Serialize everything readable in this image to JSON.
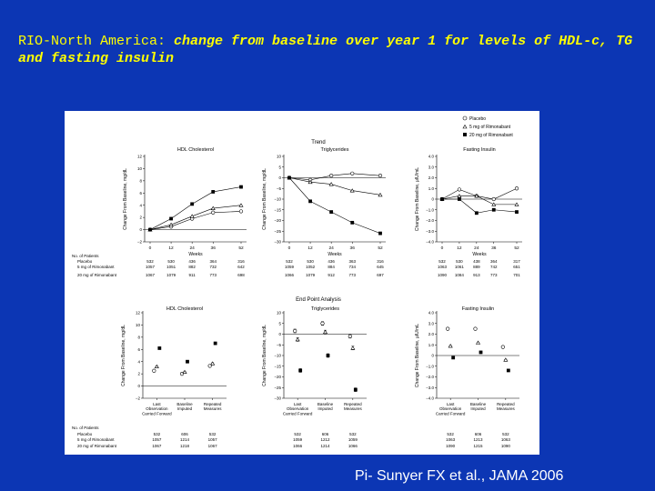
{
  "slide": {
    "title_part1": "RIO-North America:",
    "title_part2": " change from baseline over year 1 for levels of HDL-c, TG and fasting insulin",
    "citation": "Pi- Sunyer FX et al., JAMA 2006"
  },
  "colors": {
    "background": "#0c36b4",
    "title": "#ffff00",
    "footer": "#ffffff"
  },
  "legend": {
    "items": [
      {
        "label": "Placebo",
        "marker": "open-circle"
      },
      {
        "label": "5 mg of Rimonabant",
        "marker": "triangle"
      },
      {
        "label": "20 mg of Rimonabant",
        "marker": "filled-square"
      }
    ]
  },
  "sections": {
    "trend": "Trend",
    "endpoint": "End Point Analysis"
  },
  "patients": {
    "header": "No. of Patients",
    "rows": [
      "Placebo",
      "5 mg of Rimonabant",
      "20 mg of Rimonabant"
    ]
  },
  "chart_data": [
    {
      "type": "line",
      "title": "HDL Cholesterol",
      "xlabel": "Weeks",
      "ylabel": "Change From Baseline, mg/dL",
      "x": [
        0,
        12,
        24,
        36,
        52
      ],
      "ylim": [
        -2,
        12
      ],
      "yticks": [
        "−2",
        "0",
        "2",
        "4",
        "6",
        "8",
        "10",
        "12"
      ],
      "series": [
        {
          "name": "Placebo",
          "values": [
            0,
            0.5,
            1.8,
            2.8,
            3.0
          ]
        },
        {
          "name": "5 mg of Rimonabant",
          "values": [
            0,
            0.8,
            2.2,
            3.5,
            4.0
          ]
        },
        {
          "name": "20 mg of Rimonabant",
          "values": [
            0,
            1.8,
            4.2,
            6.2,
            7.0
          ]
        }
      ],
      "patients": [
        [
          "532",
          "530",
          "436",
          "364",
          "316"
        ],
        [
          "1057",
          "1051",
          "882",
          "732",
          "642"
        ],
        [
          "1067",
          "1079",
          "911",
          "773",
          "698"
        ]
      ]
    },
    {
      "type": "line",
      "title": "Triglycerides",
      "xlabel": "Weeks",
      "ylabel": "Change From Baseline, mg/dL",
      "x": [
        0,
        12,
        24,
        36,
        52
      ],
      "ylim": [
        -30,
        10
      ],
      "yticks": [
        "−30",
        "−25",
        "−20",
        "−15",
        "−10",
        "−5",
        "0",
        "5",
        "10"
      ],
      "series": [
        {
          "name": "Placebo",
          "values": [
            0,
            -1,
            1,
            2,
            1
          ]
        },
        {
          "name": "5 mg of Rimonabant",
          "values": [
            0,
            -2,
            -3,
            -6,
            -8
          ]
        },
        {
          "name": "20 mg of Rimonabant",
          "values": [
            0,
            -11,
            -16,
            -21,
            -26
          ]
        }
      ],
      "patients": [
        [
          "532",
          "530",
          "436",
          "363",
          "316"
        ],
        [
          "1059",
          "1052",
          "884",
          "734",
          "645"
        ],
        [
          "1066",
          "1079",
          "912",
          "773",
          "697"
        ]
      ]
    },
    {
      "type": "line",
      "title": "Fasting Insulin",
      "xlabel": "Weeks",
      "ylabel": "Change From Baseline, μIU/mL",
      "x": [
        0,
        12,
        24,
        36,
        52
      ],
      "ylim": [
        -4,
        4
      ],
      "yticks": [
        "−4.0",
        "−3.0",
        "−2.0",
        "−1.0",
        "0",
        "1.0",
        "2.0",
        "3.0",
        "4.0"
      ],
      "series": [
        {
          "name": "Placebo",
          "values": [
            0,
            0.9,
            0.3,
            0.0,
            1.0
          ]
        },
        {
          "name": "5 mg of Rimonabant",
          "values": [
            0,
            0.3,
            0.3,
            -0.5,
            -0.5
          ]
        },
        {
          "name": "20 mg of Rimonabant",
          "values": [
            0,
            0.0,
            -1.3,
            -1.0,
            -1.2
          ]
        }
      ],
      "patients": [
        [
          "532",
          "530",
          "438",
          "364",
          "317"
        ],
        [
          "1063",
          "1061",
          "889",
          "742",
          "651"
        ],
        [
          "1090",
          "1084",
          "913",
          "773",
          "701"
        ]
      ]
    },
    {
      "type": "scatter",
      "title": "HDL Cholesterol",
      "ylabel": "Change From Baseline, mg/dL",
      "categories": [
        "Last Observation Carried Forward",
        "Baseline Imputed",
        "Repeated Measures"
      ],
      "ylim": [
        -2,
        12
      ],
      "yticks": [
        "−2",
        "0",
        "2",
        "4",
        "6",
        "8",
        "10",
        "12"
      ],
      "series": [
        {
          "name": "Placebo",
          "values": [
            2.5,
            2.0,
            3.3
          ]
        },
        {
          "name": "5 mg of Rimonabant",
          "values": [
            3.2,
            2.3,
            3.7
          ]
        },
        {
          "name": "20 mg of Rimonabant",
          "values": [
            6.2,
            4.0,
            7.0
          ]
        }
      ],
      "patients": [
        [
          "532",
          "606",
          "532"
        ],
        [
          "1057",
          "1214",
          "1057"
        ],
        [
          "1067",
          "1218",
          "1067"
        ]
      ]
    },
    {
      "type": "scatter",
      "title": "Triglycerides",
      "ylabel": "Change From Baseline, mg/dL",
      "categories": [
        "Last Observation Carried Forward",
        "Baseline Imputed",
        "Repeated Measures"
      ],
      "ylim": [
        -30,
        10
      ],
      "yticks": [
        "−30",
        "−25",
        "−20",
        "−15",
        "−10",
        "−5",
        "0",
        "5",
        "10"
      ],
      "series": [
        {
          "name": "Placebo",
          "values": [
            1.5,
            5.0,
            -1.0
          ]
        },
        {
          "name": "5 mg of Rimonabant",
          "values": [
            -2.5,
            1.0,
            -6.5
          ]
        },
        {
          "name": "20 mg of Rimonabant",
          "values": [
            -17.0,
            -10.0,
            -26.0
          ]
        }
      ],
      "patients": [
        [
          "532",
          "606",
          "532"
        ],
        [
          "1059",
          "1212",
          "1059"
        ],
        [
          "1066",
          "1214",
          "1066"
        ]
      ]
    },
    {
      "type": "scatter",
      "title": "Fasting Insulin",
      "ylabel": "Change From Baseline, μIU/mL",
      "categories": [
        "Last Observation Carried Forward",
        "Baseline Imputed",
        "Repeated Measures"
      ],
      "ylim": [
        -4,
        4
      ],
      "yticks": [
        "−4.0",
        "−3.0",
        "−2.0",
        "−1.0",
        "0",
        "1.0",
        "2.0",
        "3.0",
        "4.0"
      ],
      "series": [
        {
          "name": "Placebo",
          "values": [
            2.5,
            2.5,
            0.8
          ]
        },
        {
          "name": "5 mg of Rimonabant",
          "values": [
            0.9,
            1.2,
            -0.4
          ]
        },
        {
          "name": "20 mg of Rimonabant",
          "values": [
            -0.2,
            0.3,
            -1.4
          ]
        }
      ],
      "patients": [
        [
          "532",
          "606",
          "532"
        ],
        [
          "1063",
          "1213",
          "1063"
        ],
        [
          "1090",
          "1215",
          "1090"
        ]
      ]
    }
  ]
}
